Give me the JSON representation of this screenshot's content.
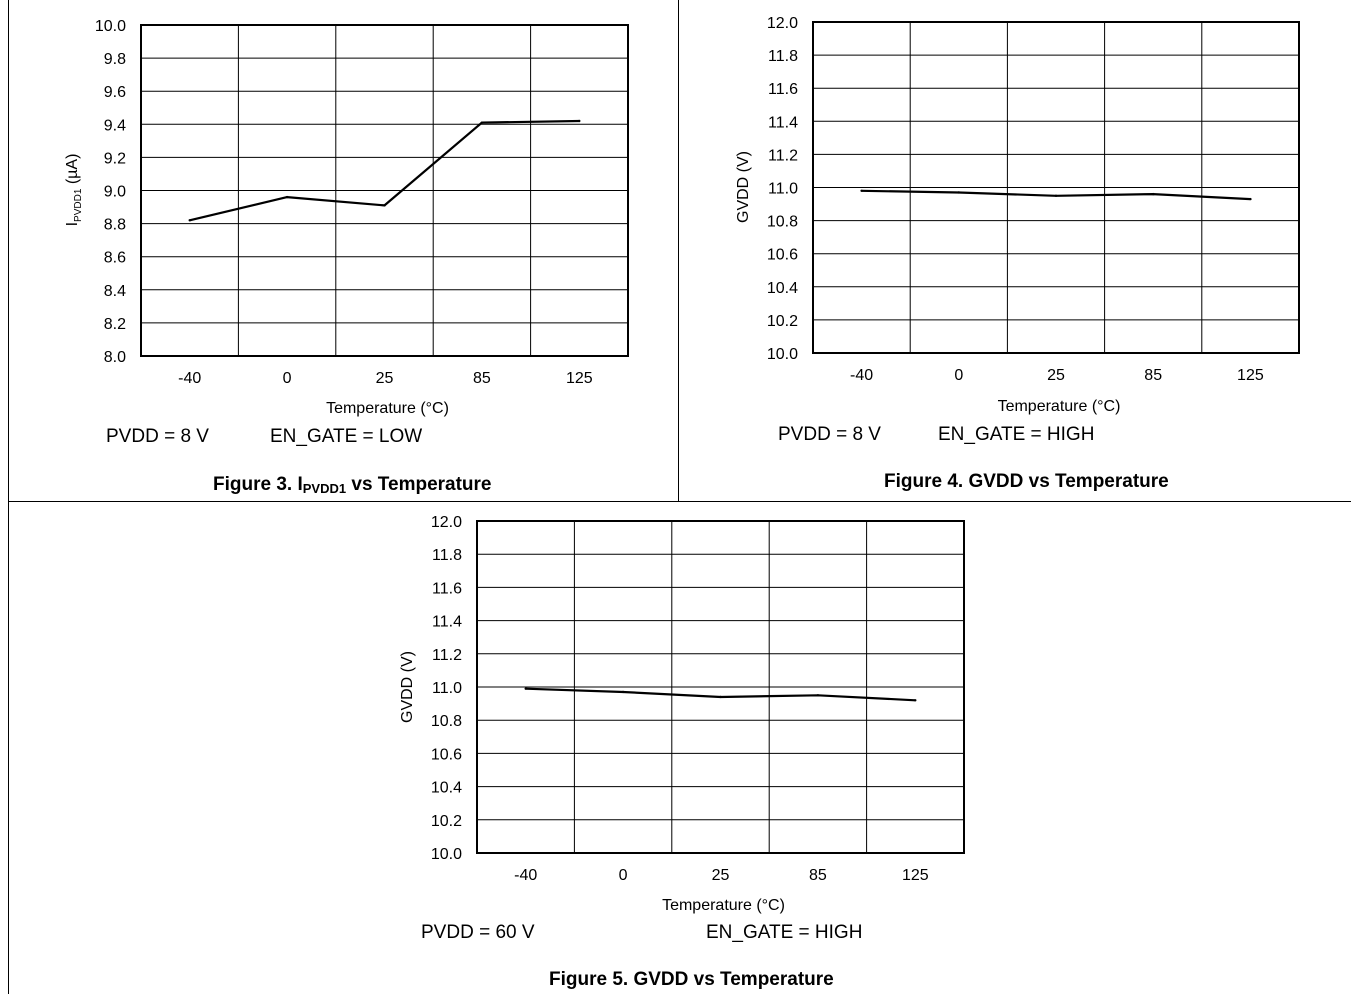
{
  "figures": [
    {
      "caption_prefix": "Figure 3. I",
      "caption_sub": "PVDD1",
      "caption_suffix": " vs Temperature",
      "conditions": [
        "PVDD = 8 V",
        "EN_GATE = LOW"
      ]
    },
    {
      "caption_prefix": "Figure 4. GVDD vs Temperature",
      "conditions": [
        "PVDD = 8 V",
        "EN_GATE = HIGH"
      ]
    },
    {
      "caption_prefix": "Figure 5. GVDD vs Temperature",
      "conditions": [
        "PVDD = 60 V",
        "EN_GATE = HIGH"
      ]
    }
  ],
  "chart_data": [
    {
      "type": "line",
      "title": "",
      "categories": [
        "-40",
        "0",
        "25",
        "85",
        "125"
      ],
      "values": [
        8.82,
        8.96,
        8.91,
        9.41,
        9.42
      ],
      "xlabel": "Temperature (°C)",
      "ylabel_main": "I",
      "ylabel_sub": "PVDD1",
      "ylabel_unit": " (µA)",
      "ylim": [
        8.0,
        10.0
      ],
      "yticks": [
        "10.0",
        "9.8",
        "9.6",
        "9.4",
        "9.2",
        "9.0",
        "8.8",
        "8.6",
        "8.4",
        "8.2",
        "8.0"
      ],
      "grid": true,
      "line_color": "#000000"
    },
    {
      "type": "line",
      "title": "",
      "categories": [
        "-40",
        "0",
        "25",
        "85",
        "125"
      ],
      "values": [
        10.98,
        10.97,
        10.95,
        10.96,
        10.93
      ],
      "xlabel": "Temperature (°C)",
      "ylabel_main": "GVDD (V)",
      "ylim": [
        10.0,
        12.0
      ],
      "yticks": [
        "12.0",
        "11.8",
        "11.6",
        "11.4",
        "11.2",
        "11.0",
        "10.8",
        "10.6",
        "10.4",
        "10.2",
        "10.0"
      ],
      "grid": true,
      "line_color": "#000000"
    },
    {
      "type": "line",
      "title": "",
      "categories": [
        "-40",
        "0",
        "25",
        "85",
        "125"
      ],
      "values": [
        10.99,
        10.97,
        10.94,
        10.95,
        10.92
      ],
      "xlabel": "Temperature (°C)",
      "ylabel_main": "GVDD (V)",
      "ylim": [
        10.0,
        12.0
      ],
      "yticks": [
        "12.0",
        "11.8",
        "11.6",
        "11.4",
        "11.2",
        "11.0",
        "10.8",
        "10.6",
        "10.4",
        "10.2",
        "10.0"
      ],
      "grid": true,
      "line_color": "#000000"
    }
  ]
}
